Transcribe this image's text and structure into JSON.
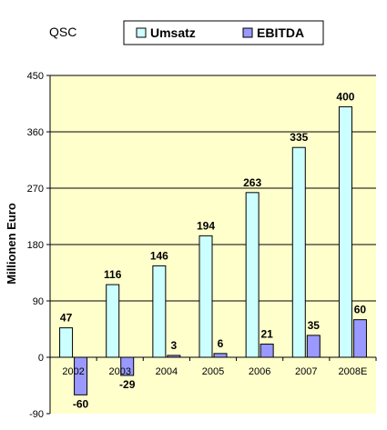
{
  "chart_data": {
    "type": "bar",
    "title": "QSC",
    "ylabel": "Millionen Euro",
    "xlabel": "",
    "categories": [
      "2002",
      "2003",
      "2004",
      "2005",
      "2006",
      "2007",
      "2008E"
    ],
    "series": [
      {
        "name": "Umsatz",
        "values": [
          47,
          116,
          146,
          194,
          263,
          335,
          400
        ]
      },
      {
        "name": "EBITDA",
        "values": [
          -60,
          -29,
          3,
          6,
          21,
          35,
          60
        ]
      }
    ],
    "ylim": [
      -90,
      450
    ],
    "yticks": [
      -90,
      0,
      90,
      180,
      270,
      360,
      450
    ],
    "grid": true,
    "legend_position": "top",
    "colors": {
      "plot_background": "#ffffcc",
      "Umsatz": "#ccffff",
      "EBITDA": "#9999ff",
      "gridline": "#000000",
      "bar_outline": "#000000"
    }
  }
}
